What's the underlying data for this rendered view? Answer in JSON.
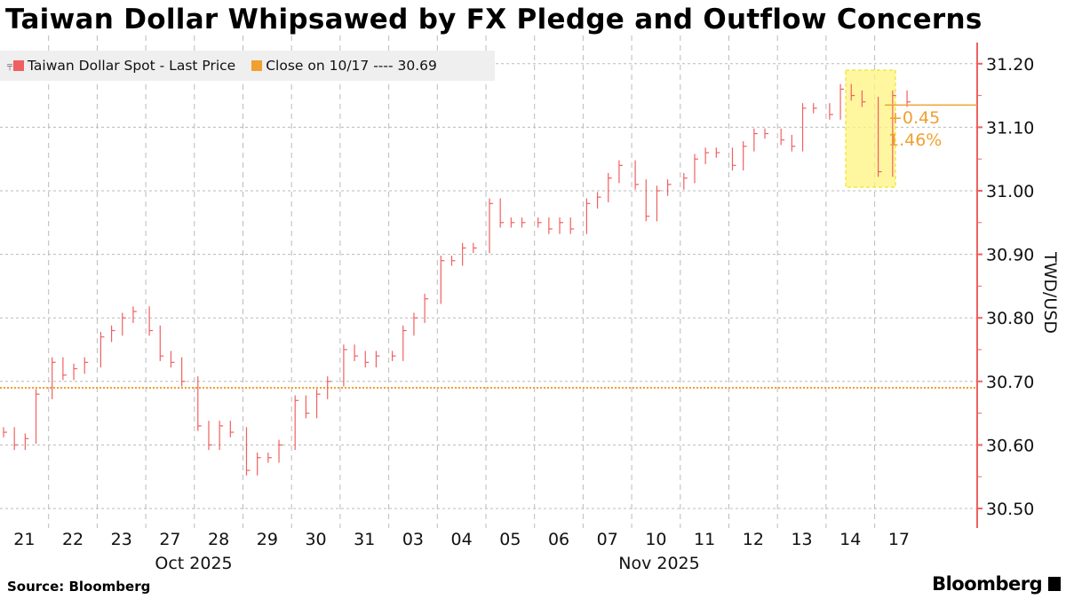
{
  "title": "Taiwan Dollar Whipsawed by FX Pledge and Outflow Concerns",
  "legend": {
    "series_label": "Taiwan Dollar Spot - Last Price",
    "close_label": "Close on 10/17 ---- 30.69"
  },
  "source": "Source: Bloomberg",
  "logo": "Bloomberg",
  "colors": {
    "series": "#f06060",
    "close": "#f0a030",
    "highlight": "#fff380"
  },
  "chart_data": {
    "type": "line",
    "title": "Taiwan Dollar Whipsawed by FX Pledge and Outflow Concerns",
    "ylabel": "TWD/USD",
    "ylim": [
      30.47,
      31.25
    ],
    "yticks": [
      "31.20",
      "31.10",
      "31.00",
      "30.90",
      "30.80",
      "30.70",
      "30.60",
      "30.50"
    ],
    "ytick_values": [
      31.2,
      31.1,
      31.0,
      30.9,
      30.8,
      30.7,
      30.6,
      30.5
    ],
    "xtick_labels": [
      "21",
      "22",
      "23",
      "27",
      "28",
      "29",
      "30",
      "31",
      "03",
      "04",
      "05",
      "06",
      "07",
      "10",
      "11",
      "12",
      "13",
      "14",
      "17"
    ],
    "month_labels": [
      "Oct 2025",
      "Nov 2025"
    ],
    "grid": true,
    "legend_position": "top-left",
    "close_reference": {
      "label": "Close on 10/17",
      "value": 30.69
    },
    "annotation": {
      "change": "+0.45",
      "pct": "1.46%",
      "value": 31.135
    },
    "series": [
      {
        "name": "Taiwan Dollar Spot - Last Price",
        "values_by_day": [
          [
            30.62,
            30.6,
            30.61,
            30.68
          ],
          [
            30.73,
            30.71,
            30.72,
            30.73
          ],
          [
            30.77,
            30.78,
            30.8,
            30.81
          ],
          [
            30.78,
            30.74,
            30.73,
            30.7
          ],
          [
            30.63,
            30.6,
            30.63,
            30.62
          ],
          [
            30.56,
            30.58,
            30.58,
            30.6
          ],
          [
            30.67,
            30.65,
            30.68,
            30.7
          ],
          [
            30.75,
            30.74,
            30.73,
            30.74
          ],
          [
            30.74,
            30.78,
            30.8,
            30.83
          ],
          [
            30.89,
            30.89,
            30.91,
            30.91
          ],
          [
            30.98,
            30.95,
            30.95,
            30.95
          ],
          [
            30.95,
            30.94,
            30.95,
            30.94
          ],
          [
            30.98,
            30.99,
            31.02,
            31.04
          ],
          [
            31.01,
            30.96,
            31.0,
            31.01
          ],
          [
            31.02,
            31.05,
            31.06,
            31.06
          ],
          [
            31.04,
            31.07,
            31.09,
            31.09
          ],
          [
            31.08,
            31.07,
            31.13,
            31.13
          ],
          [
            31.12,
            31.16,
            31.15,
            31.14
          ],
          [
            31.03,
            31.15,
            31.14
          ]
        ]
      }
    ]
  }
}
